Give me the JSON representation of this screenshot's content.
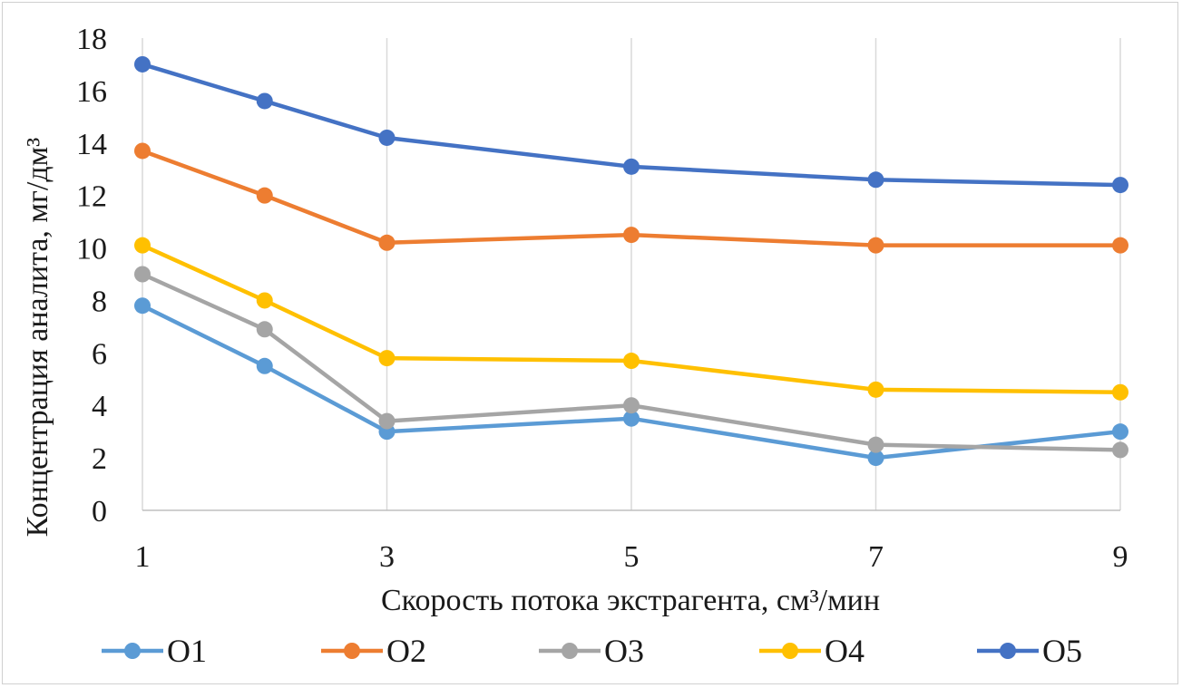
{
  "chart_data": {
    "type": "line",
    "title": "",
    "xlabel": "Скорость потока экстрагента, см³/мин",
    "ylabel": "Концентрация аналита, мг/дм³",
    "x": [
      1,
      2,
      3,
      5,
      7,
      9
    ],
    "x_ticks": [
      1,
      3,
      5,
      7,
      9
    ],
    "xlim": [
      1,
      9
    ],
    "ylim": [
      0,
      18
    ],
    "y_ticks": [
      0,
      2,
      4,
      6,
      8,
      10,
      12,
      14,
      16,
      18
    ],
    "grid": "vertical",
    "legend_position": "bottom",
    "series": [
      {
        "name": "O1",
        "color": "#5b9bd5",
        "values": [
          7.8,
          5.5,
          3.0,
          3.5,
          2.0,
          3.0
        ]
      },
      {
        "name": "O2",
        "color": "#ed7d31",
        "values": [
          13.7,
          12.0,
          10.2,
          10.5,
          10.1,
          10.1
        ]
      },
      {
        "name": "O3",
        "color": "#a5a5a5",
        "values": [
          9.0,
          6.9,
          3.4,
          4.0,
          2.5,
          2.3
        ]
      },
      {
        "name": "O4",
        "color": "#ffc000",
        "values": [
          10.1,
          8.0,
          5.8,
          5.7,
          4.6,
          4.5
        ]
      },
      {
        "name": "O5",
        "color": "#4472c4",
        "values": [
          17.0,
          15.6,
          14.2,
          13.1,
          12.6,
          12.4
        ]
      }
    ]
  }
}
